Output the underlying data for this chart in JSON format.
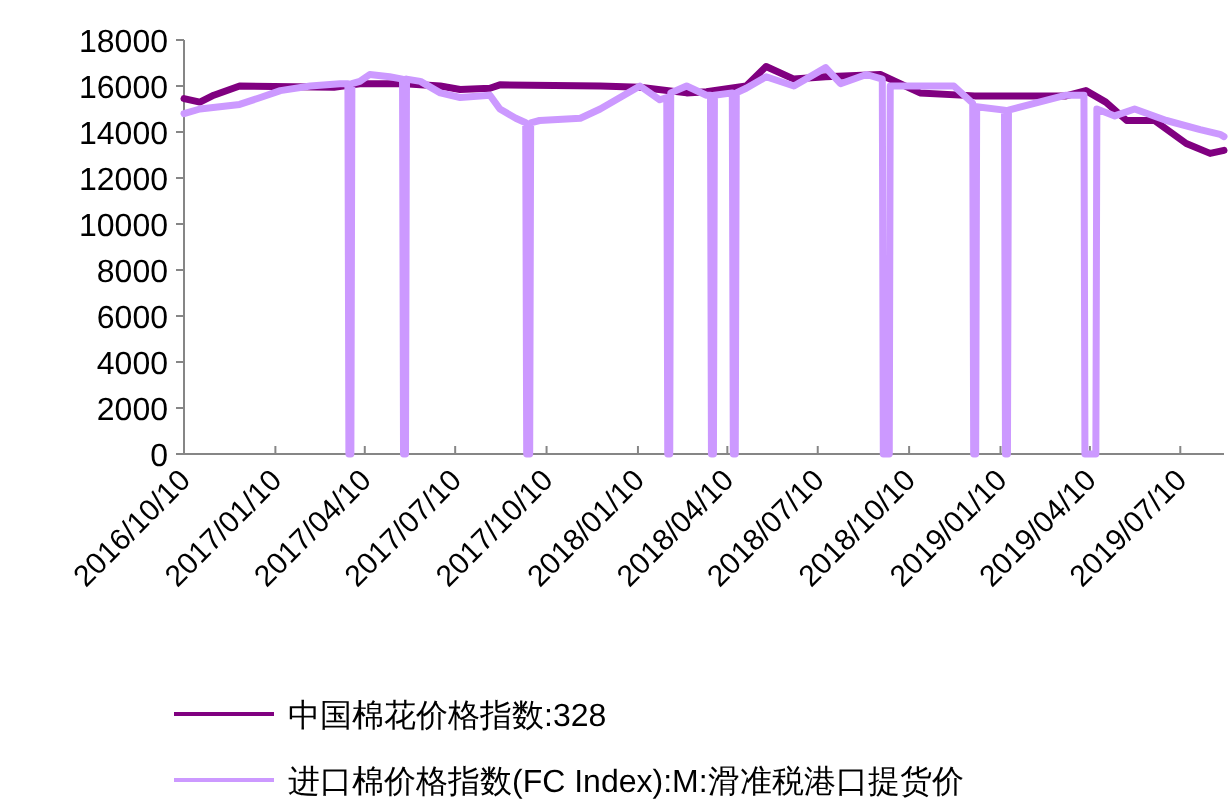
{
  "chart_data": {
    "type": "line",
    "legend": "bottom",
    "grid": false,
    "xlim": [
      "2016-10-10",
      "2019-08-23"
    ],
    "ylim": [
      0,
      18000
    ],
    "yticks": [
      0,
      2000,
      4000,
      6000,
      8000,
      10000,
      12000,
      14000,
      16000,
      18000
    ],
    "xticks": [
      {
        "value": "2016-10-10",
        "label": "2016/10/10"
      },
      {
        "value": "2017-01-10",
        "label": "2017/01/10"
      },
      {
        "value": "2017-04-10",
        "label": "2017/04/10"
      },
      {
        "value": "2017-07-10",
        "label": "2017/07/10"
      },
      {
        "value": "2017-10-10",
        "label": "2017/10/10"
      },
      {
        "value": "2018-01-10",
        "label": "2018/01/10"
      },
      {
        "value": "2018-04-10",
        "label": "2018/04/10"
      },
      {
        "value": "2018-07-10",
        "label": "2018/07/10"
      },
      {
        "value": "2018-10-10",
        "label": "2018/10/10"
      },
      {
        "value": "2019-01-10",
        "label": "2019/01/10"
      },
      {
        "value": "2019-04-10",
        "label": "2019/04/10"
      },
      {
        "value": "2019-07-10",
        "label": "2019/07/10"
      }
    ],
    "series": [
      {
        "name": "中国棉花价格指数:328",
        "color": "#800080",
        "x": [
          "2016-10-10",
          "2016-10-26",
          "2016-11-09",
          "2016-12-05",
          "2017-03-10",
          "2017-04-05",
          "2017-05-20",
          "2017-06-25",
          "2017-07-15",
          "2017-08-14",
          "2017-08-24",
          "2017-12-03",
          "2018-01-12",
          "2018-02-28",
          "2018-03-20",
          "2018-04-29",
          "2018-05-19",
          "2018-06-16",
          "2018-07-18",
          "2018-09-11",
          "2018-10-21",
          "2018-12-15",
          "2019-03-17",
          "2019-04-06",
          "2019-04-26",
          "2019-05-17",
          "2019-06-14",
          "2019-07-16",
          "2019-08-09",
          "2019-08-23"
        ],
        "values": [
          15450,
          15300,
          15600,
          16000,
          15950,
          16100,
          16100,
          16000,
          15850,
          15900,
          16050,
          16000,
          15950,
          15700,
          15750,
          16000,
          16850,
          16300,
          16400,
          16500,
          15700,
          15570,
          15570,
          15800,
          15300,
          14500,
          14500,
          13500,
          13070,
          13200
        ]
      },
      {
        "name": "进口棉价格指数(FC Index):M:滑准税港口提货价",
        "color": "#cc99ff",
        "x": [
          "2016-10-10",
          "2016-10-26",
          "2016-12-05",
          "2016-12-26",
          "2017-01-15",
          "2017-02-14",
          "2017-03-16",
          "2017-03-24",
          "2017-03-25",
          "2017-03-27",
          "2017-03-28",
          "2017-04-05",
          "2017-04-15",
          "2017-05-05",
          "2017-05-18",
          "2017-05-19",
          "2017-05-21",
          "2017-05-22",
          "2017-06-05",
          "2017-06-25",
          "2017-07-15",
          "2017-08-14",
          "2017-08-24",
          "2017-09-09",
          "2017-09-19",
          "2017-09-20",
          "2017-09-23",
          "2017-09-24",
          "2017-10-03",
          "2017-11-13",
          "2017-12-03",
          "2017-12-23",
          "2018-01-12",
          "2018-02-01",
          "2018-02-08",
          "2018-02-09",
          "2018-02-11",
          "2018-02-12",
          "2018-02-28",
          "2018-03-20",
          "2018-03-24",
          "2018-03-25",
          "2018-03-27",
          "2018-03-28",
          "2018-04-15",
          "2018-04-16",
          "2018-04-18",
          "2018-04-19",
          "2018-04-29",
          "2018-05-19",
          "2018-06-16",
          "2018-07-18",
          "2018-08-02",
          "2018-08-28",
          "2018-09-13",
          "2018-09-14",
          "2018-09-20",
          "2018-09-21",
          "2018-10-01",
          "2018-11-24",
          "2018-12-13",
          "2018-12-14",
          "2018-12-16",
          "2018-12-17",
          "2019-01-14",
          "2019-01-15",
          "2019-01-17",
          "2019-01-18",
          "2019-02-13",
          "2019-03-17",
          "2019-04-04",
          "2019-04-05",
          "2019-04-16",
          "2019-04-17",
          "2019-05-05",
          "2019-05-25",
          "2019-06-26",
          "2019-07-30",
          "2019-08-19",
          "2019-08-23"
        ],
        "values": [
          14800,
          15000,
          15200,
          15500,
          15800,
          16000,
          16100,
          16100,
          0,
          0,
          16100,
          16200,
          16500,
          16400,
          16300,
          0,
          0,
          16300,
          16200,
          15700,
          15500,
          15600,
          15000,
          14600,
          14400,
          0,
          0,
          14400,
          14500,
          14600,
          15000,
          15500,
          16000,
          15400,
          15500,
          0,
          0,
          15700,
          16000,
          15600,
          15600,
          0,
          0,
          15600,
          15700,
          0,
          0,
          15700,
          15900,
          16400,
          16000,
          16800,
          16100,
          16500,
          16300,
          0,
          0,
          16000,
          16000,
          16000,
          15250,
          0,
          0,
          15100,
          14950,
          0,
          0,
          14950,
          15250,
          15600,
          15600,
          0,
          0,
          15000,
          14700,
          15000,
          14500,
          14100,
          13900,
          13800
        ]
      }
    ]
  }
}
